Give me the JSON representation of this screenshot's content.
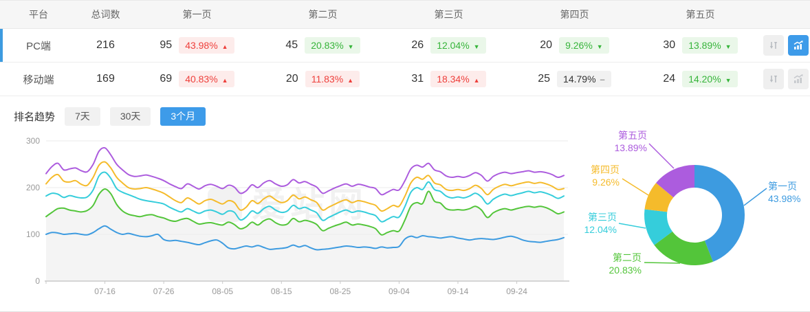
{
  "table": {
    "headers": [
      "平台",
      "总词数",
      "第一页",
      "第二页",
      "第三页",
      "第四页",
      "第五页"
    ],
    "rows": [
      {
        "platform": "PC端",
        "total": "216",
        "selected": true,
        "pages": [
          {
            "count": "95",
            "pct": "43.98%",
            "trend": "up"
          },
          {
            "count": "45",
            "pct": "20.83%",
            "trend": "down"
          },
          {
            "count": "26",
            "pct": "12.04%",
            "trend": "down"
          },
          {
            "count": "20",
            "pct": "9.26%",
            "trend": "down"
          },
          {
            "count": "30",
            "pct": "13.89%",
            "trend": "down"
          }
        ],
        "actions": {
          "sort_icon": "sort-arrows-icon",
          "chart_icon": "trend-chart-icon",
          "chart_active": true
        }
      },
      {
        "platform": "移动端",
        "total": "169",
        "selected": false,
        "pages": [
          {
            "count": "69",
            "pct": "40.83%",
            "trend": "up"
          },
          {
            "count": "20",
            "pct": "11.83%",
            "trend": "up"
          },
          {
            "count": "31",
            "pct": "18.34%",
            "trend": "up"
          },
          {
            "count": "25",
            "pct": "14.79%",
            "trend": "flat"
          },
          {
            "count": "24",
            "pct": "14.20%",
            "trend": "down"
          }
        ],
        "actions": {
          "sort_icon": "sort-arrows-icon",
          "chart_icon": "trend-chart-icon",
          "chart_active": false
        }
      }
    ]
  },
  "trend_section": {
    "title": "排名趋势",
    "tabs": [
      {
        "label": "7天",
        "active": false
      },
      {
        "label": "30天",
        "active": false
      },
      {
        "label": "3个月",
        "active": true
      }
    ]
  },
  "watermark": {
    "text": "爱站网"
  },
  "colors": {
    "accent_blue": "#3D9BE9",
    "badge_red_text": "#EE3F3B",
    "badge_red_bg": "#FDECEB",
    "badge_green_text": "#36B43A",
    "badge_green_bg": "#EAF7E9",
    "series_blue": "#3D9BE0",
    "series_green": "#53C53A",
    "series_cyan": "#35CDDB",
    "series_yellow": "#F5BB2B",
    "series_purple": "#AC5CDE"
  },
  "chart_data": [
    {
      "type": "line",
      "title": "排名趋势 3个月",
      "x_tick_labels": [
        "07-16",
        "07-26",
        "08-05",
        "08-15",
        "08-25",
        "09-04",
        "09-14",
        "09-24"
      ],
      "x_tick_indices": [
        10,
        20,
        30,
        40,
        50,
        60,
        70,
        80
      ],
      "yticks": [
        0,
        100,
        200,
        300
      ],
      "ylim": [
        0,
        300
      ],
      "grid": true,
      "legend": "none",
      "series": [
        {
          "name": "第一页",
          "color": "#3D9BE0",
          "values": [
            100,
            104,
            103,
            100,
            101,
            102,
            100,
            99,
            104,
            112,
            118,
            111,
            104,
            100,
            102,
            99,
            96,
            95,
            97,
            100,
            89,
            86,
            87,
            85,
            83,
            80,
            78,
            82,
            86,
            88,
            81,
            71,
            69,
            72,
            75,
            73,
            76,
            72,
            68,
            69,
            70,
            72,
            77,
            73,
            76,
            71,
            67,
            68,
            69,
            71,
            73,
            75,
            74,
            72,
            73,
            72,
            70,
            73,
            71,
            72,
            74,
            90,
            96,
            93,
            97,
            95,
            94,
            92,
            94,
            95,
            92,
            90,
            88,
            90,
            91,
            90,
            89,
            91,
            94,
            96,
            93,
            88,
            85,
            84,
            83,
            85,
            87,
            89,
            93
          ]
        },
        {
          "name": "第二页",
          "color": "#53C53A",
          "area": true,
          "area_color": "#F4F4F4",
          "values": [
            138,
            147,
            155,
            156,
            152,
            150,
            148,
            151,
            162,
            186,
            197,
            187,
            164,
            150,
            143,
            140,
            138,
            141,
            142,
            138,
            135,
            130,
            128,
            132,
            134,
            128,
            122,
            124,
            125,
            122,
            120,
            126,
            121,
            112,
            116,
            126,
            120,
            129,
            133,
            125,
            120,
            122,
            134,
            127,
            130,
            127,
            121,
            108,
            113,
            118,
            122,
            126,
            120,
            122,
            120,
            117,
            112,
            99,
            104,
            108,
            107,
            131,
            160,
            168,
            166,
            192,
            171,
            167,
            155,
            152,
            153,
            152,
            155,
            160,
            152,
            136,
            146,
            152,
            155,
            152,
            155,
            158,
            160,
            158,
            160,
            157,
            151,
            144,
            148
          ]
        },
        {
          "name": "第三页",
          "color": "#35CDDB",
          "values": [
            182,
            188,
            186,
            179,
            183,
            180,
            178,
            180,
            195,
            225,
            233,
            220,
            198,
            190,
            185,
            180,
            175,
            172,
            170,
            168,
            165,
            158,
            152,
            148,
            155,
            150,
            145,
            150,
            152,
            148,
            143,
            150,
            147,
            131,
            137,
            150,
            145,
            155,
            160,
            152,
            147,
            150,
            162,
            155,
            158,
            152,
            146,
            130,
            136,
            142,
            148,
            152,
            147,
            150,
            148,
            144,
            140,
            127,
            132,
            138,
            137,
            160,
            190,
            200,
            196,
            212,
            196,
            192,
            182,
            178,
            180,
            178,
            182,
            188,
            180,
            165,
            175,
            182,
            186,
            183,
            186,
            189,
            192,
            189,
            191,
            188,
            183,
            177,
            182
          ]
        },
        {
          "name": "第四页",
          "color": "#F5BB2B",
          "values": [
            208,
            222,
            228,
            214,
            212,
            215,
            207,
            205,
            222,
            248,
            255,
            242,
            222,
            210,
            200,
            197,
            198,
            200,
            197,
            193,
            188,
            180,
            172,
            168,
            178,
            172,
            165,
            172,
            175,
            170,
            165,
            172,
            168,
            152,
            158,
            172,
            166,
            176,
            182,
            174,
            168,
            172,
            184,
            176,
            180,
            174,
            168,
            152,
            158,
            164,
            170,
            174,
            168,
            172,
            170,
            166,
            162,
            150,
            155,
            162,
            160,
            182,
            210,
            222,
            218,
            226,
            210,
            206,
            196,
            194,
            196,
            194,
            198,
            205,
            198,
            185,
            196,
            203,
            207,
            204,
            207,
            210,
            212,
            209,
            211,
            208,
            203,
            196,
            198
          ]
        },
        {
          "name": "第五页",
          "color": "#AC5CDE",
          "values": [
            230,
            245,
            252,
            238,
            240,
            242,
            236,
            234,
            250,
            278,
            285,
            270,
            250,
            238,
            228,
            224,
            225,
            227,
            224,
            220,
            215,
            208,
            202,
            198,
            208,
            203,
            197,
            204,
            207,
            203,
            198,
            205,
            201,
            188,
            193,
            206,
            200,
            210,
            215,
            208,
            203,
            206,
            217,
            210,
            213,
            207,
            201,
            188,
            193,
            199,
            204,
            208,
            203,
            207,
            205,
            201,
            198,
            185,
            190,
            196,
            195,
            215,
            240,
            248,
            244,
            252,
            238,
            234,
            225,
            222,
            224,
            222,
            226,
            232,
            226,
            214,
            224,
            230,
            233,
            230,
            232,
            234,
            236,
            233,
            234,
            232,
            228,
            222,
            226
          ]
        }
      ]
    },
    {
      "type": "pie",
      "donut": true,
      "slices": [
        {
          "label": "第一页",
          "value": 43.98,
          "display": "43.98%",
          "color": "#3D9BE0"
        },
        {
          "label": "第二页",
          "value": 20.83,
          "display": "20.83%",
          "color": "#53C53A"
        },
        {
          "label": "第三页",
          "value": 12.04,
          "display": "12.04%",
          "color": "#35CDDB"
        },
        {
          "label": "第四页",
          "value": 9.26,
          "display": "9.26%",
          "color": "#F5BB2B"
        },
        {
          "label": "第五页",
          "value": 13.89,
          "display": "13.89%",
          "color": "#AC5CDE"
        }
      ]
    }
  ]
}
